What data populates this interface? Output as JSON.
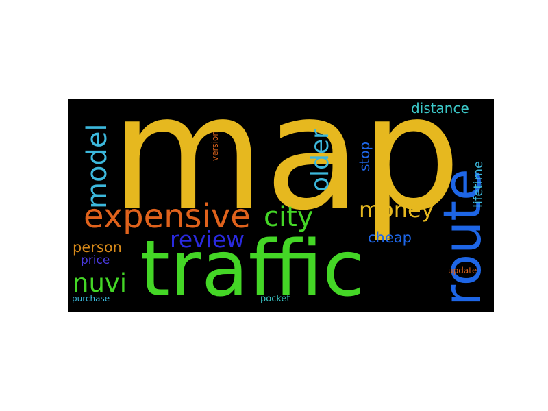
{
  "word_cloud": {
    "background": "#000000",
    "words": [
      {
        "text": "map",
        "color": "#e6b81f"
      },
      {
        "text": "traffic",
        "color": "#44d626"
      },
      {
        "text": "route",
        "color": "#1e66e6"
      },
      {
        "text": "expensive",
        "color": "#e0621c"
      },
      {
        "text": "city",
        "color": "#44d626"
      },
      {
        "text": "review",
        "color": "#2a2ae0"
      },
      {
        "text": "model",
        "color": "#3cb8dc"
      },
      {
        "text": "older",
        "color": "#3cb8dc"
      },
      {
        "text": "money",
        "color": "#e6b81f"
      },
      {
        "text": "nuvi",
        "color": "#44d626"
      },
      {
        "text": "distance",
        "color": "#3cc8c8"
      },
      {
        "text": "person",
        "color": "#d88a1a"
      },
      {
        "text": "lifetime",
        "color": "#3cb8dc"
      },
      {
        "text": "stop",
        "color": "#1e66e6"
      },
      {
        "text": "cheap",
        "color": "#1e66e6"
      },
      {
        "text": "price",
        "color": "#4a3ae0"
      },
      {
        "text": "version",
        "color": "#d8621c"
      },
      {
        "text": "update",
        "color": "#d8621c"
      },
      {
        "text": "purchase",
        "color": "#3cb8dc"
      },
      {
        "text": "pocket",
        "color": "#3cc8c8"
      }
    ]
  }
}
